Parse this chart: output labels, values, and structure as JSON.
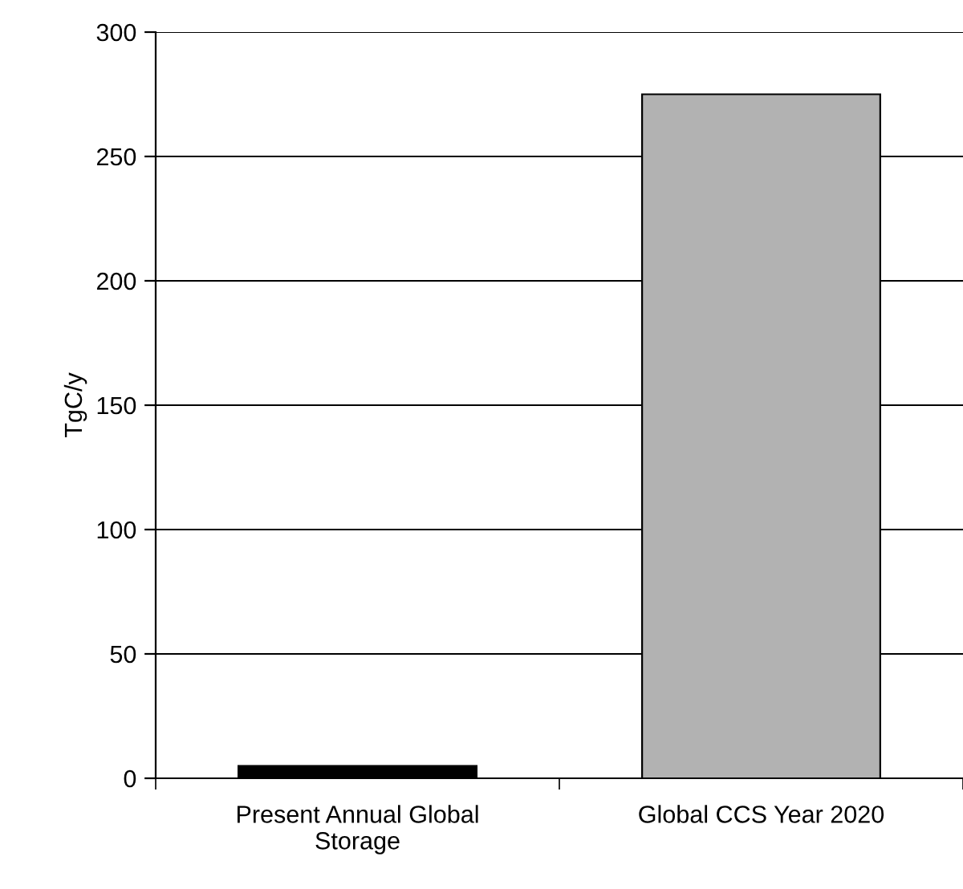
{
  "chart_data": {
    "type": "bar",
    "ylabel": "TgC/y",
    "categories": [
      "Present Annual Global\nStorage",
      "Global CCS Year 2020"
    ],
    "values": [
      5,
      275
    ],
    "colors": [
      "#000000",
      "#b2b2b2"
    ],
    "ylim": [
      0,
      300
    ],
    "yticks": [
      0,
      50,
      100,
      150,
      200,
      250,
      300
    ],
    "grid": "y"
  }
}
